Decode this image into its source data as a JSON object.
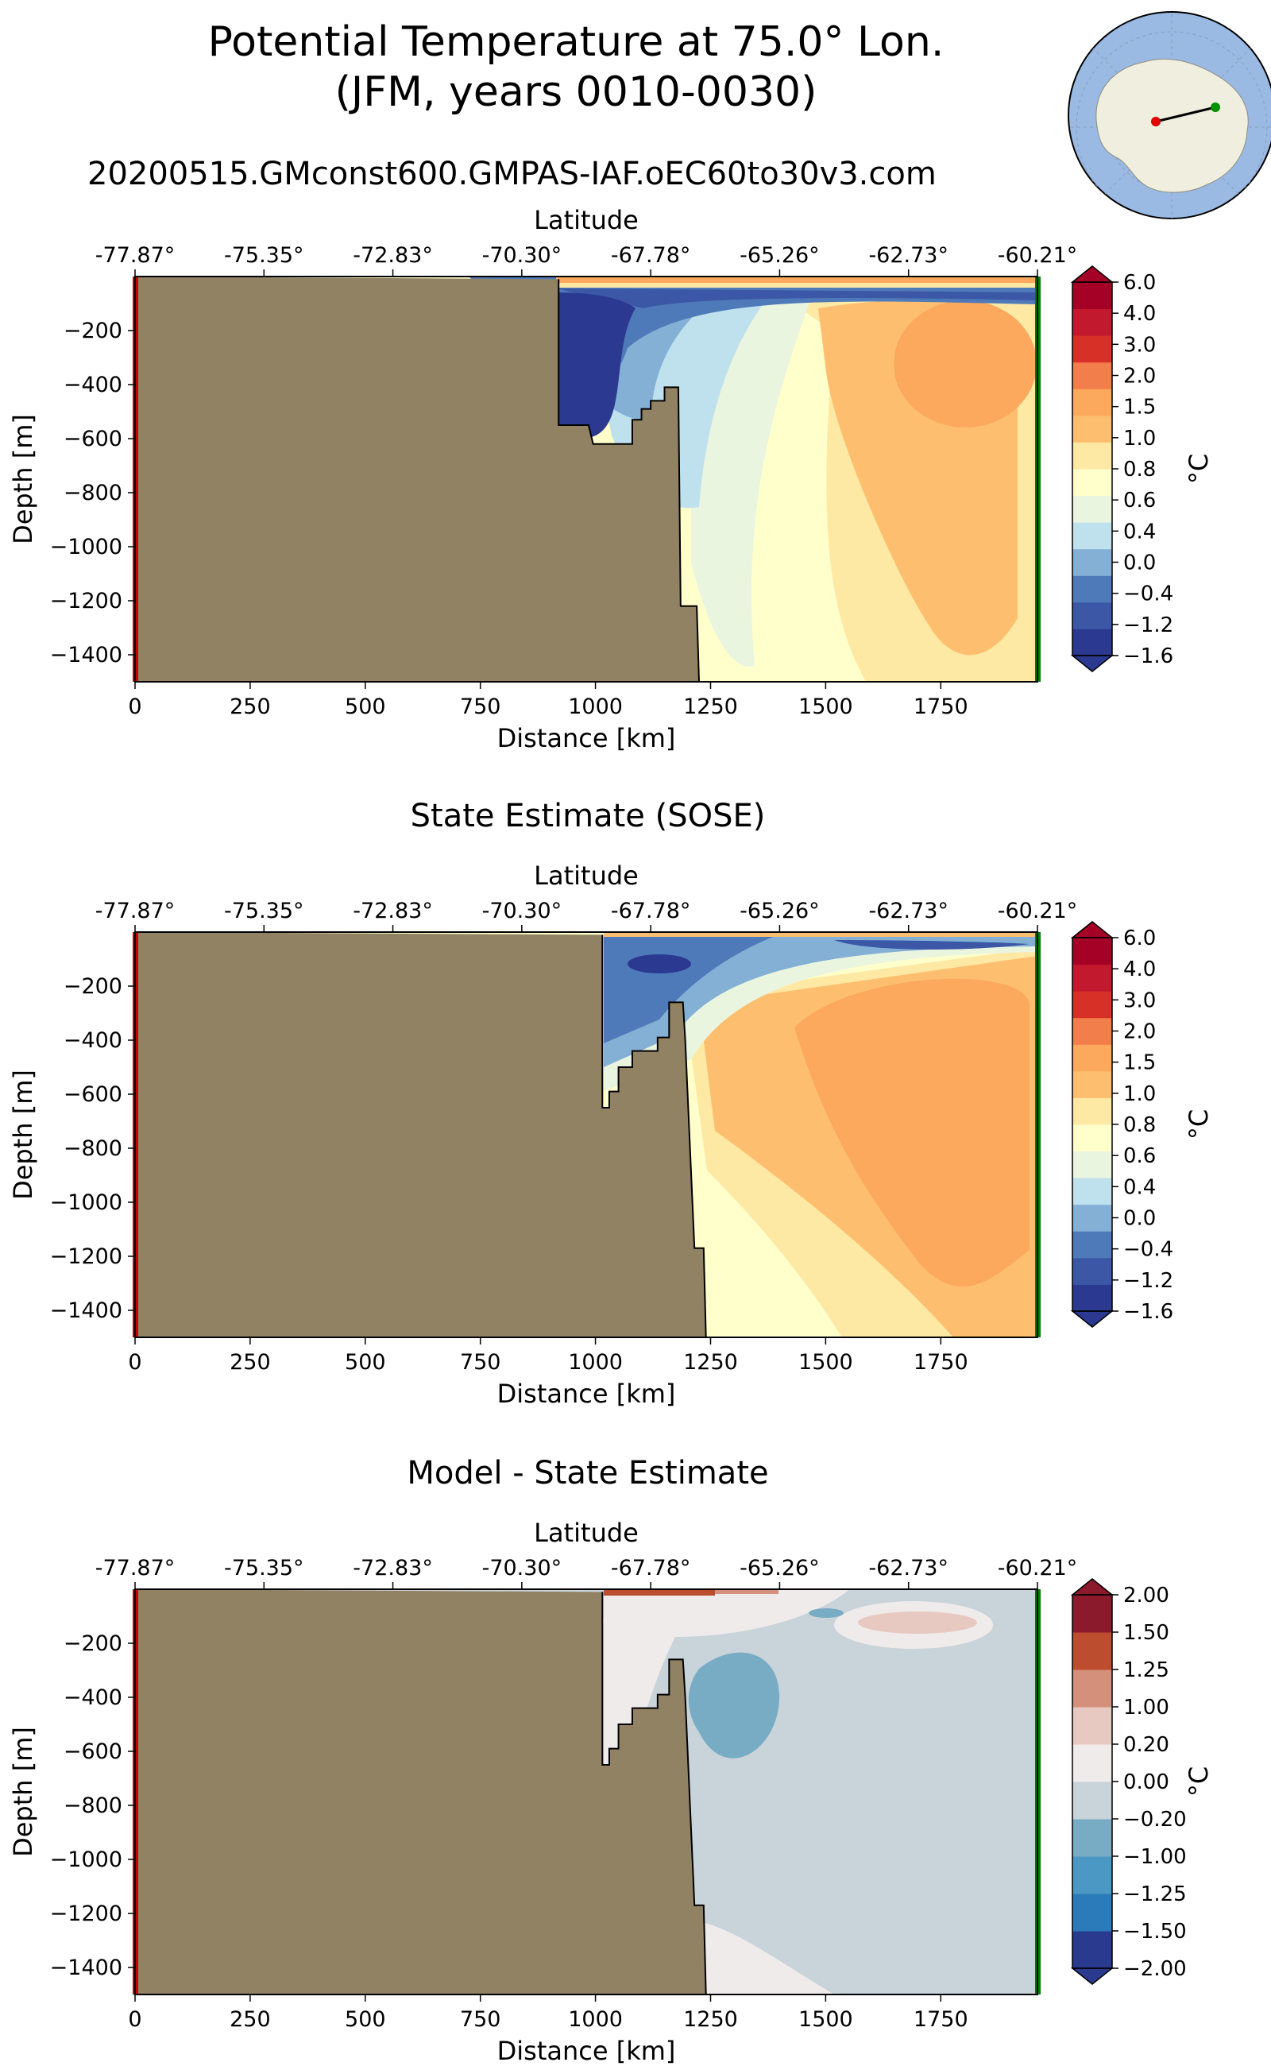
{
  "figure": {
    "title_line1": "Potential Temperature at 75.0° Lon.",
    "title_line2": "(JFM, years 0010-0030)",
    "run_name": "20200515.GMconst600.GMPAS-IAF.oEC60to30v3.com"
  },
  "colors": {
    "land": "#918264",
    "left_edge": "#cc0000",
    "right_edge": "#008000",
    "ocean": "#9ab9e3",
    "antarctica": "#efeedf"
  },
  "chart_data": [
    {
      "type": "heatmap",
      "title": "",
      "xlabel": "Distance [km]",
      "ylabel": "Depth [m]",
      "top_xlabel": "Latitude",
      "xlim": [
        0,
        1960
      ],
      "ylim": [
        -1500,
        0
      ],
      "x_ticks": [
        "0",
        "250",
        "500",
        "750",
        "1000",
        "1250",
        "1500",
        "1750"
      ],
      "y_ticks": [
        "−200",
        "−400",
        "−600",
        "−800",
        "−1000",
        "−1200",
        "−1400"
      ],
      "lat_ticks": [
        "-77.87°",
        "-75.35°",
        "-72.83°",
        "-70.30°",
        "-67.78°",
        "-65.26°",
        "-62.73°",
        "-60.21°"
      ],
      "colorbar_label": "°C",
      "colorbar_ticks": [
        "6.0",
        "4.0",
        "3.0",
        "2.0",
        "1.5",
        "1.0",
        "0.8",
        "0.6",
        "0.4",
        "0.0",
        "−0.4",
        "−1.2",
        "−1.6"
      ],
      "colorbar_colors": [
        "#2b3990",
        "#3b57a6",
        "#4f7ab9",
        "#84b0d6",
        "#bfe0ed",
        "#eaf5e0",
        "#ffffcc",
        "#fee9a4",
        "#fdbf6f",
        "#fca85d",
        "#f27e4b",
        "#d73027",
        "#c2192e",
        "#a50026"
      ],
      "bathymetry": [
        [
          920,
          -10
        ],
        [
          920,
          -550
        ],
        [
          985,
          -550
        ],
        [
          995,
          -620
        ],
        [
          1080,
          -620
        ],
        [
          1080,
          -530
        ],
        [
          1100,
          -530
        ],
        [
          1100,
          -490
        ],
        [
          1120,
          -490
        ],
        [
          1120,
          -460
        ],
        [
          1150,
          -460
        ],
        [
          1150,
          -410
        ],
        [
          1180,
          -410
        ],
        [
          1185,
          -1220
        ],
        [
          1220,
          -1220
        ],
        [
          1225,
          -1500
        ]
      ],
      "max_warm_depth_m": -1000
    },
    {
      "type": "heatmap",
      "title": "State Estimate (SOSE)",
      "xlabel": "Distance [km]",
      "ylabel": "Depth [m]",
      "top_xlabel": "Latitude",
      "xlim": [
        0,
        1960
      ],
      "ylim": [
        -1500,
        0
      ],
      "x_ticks": [
        "0",
        "250",
        "500",
        "750",
        "1000",
        "1250",
        "1500",
        "1750"
      ],
      "y_ticks": [
        "−200",
        "−400",
        "−600",
        "−800",
        "−1000",
        "−1200",
        "−1400"
      ],
      "lat_ticks": [
        "-77.87°",
        "-75.35°",
        "-72.83°",
        "-70.30°",
        "-67.78°",
        "-65.26°",
        "-62.73°",
        "-60.21°"
      ],
      "colorbar_label": "°C",
      "colorbar_ticks": [
        "6.0",
        "4.0",
        "3.0",
        "2.0",
        "1.5",
        "1.0",
        "0.8",
        "0.6",
        "0.4",
        "0.0",
        "−0.4",
        "−1.2",
        "−1.6"
      ],
      "colorbar_colors": [
        "#2b3990",
        "#3b57a6",
        "#4f7ab9",
        "#84b0d6",
        "#bfe0ed",
        "#eaf5e0",
        "#ffffcc",
        "#fee9a4",
        "#fdbf6f",
        "#fca85d",
        "#f27e4b",
        "#d73027",
        "#c2192e",
        "#a50026"
      ],
      "bathymetry": [
        [
          1015,
          -10
        ],
        [
          1015,
          -650
        ],
        [
          1030,
          -650
        ],
        [
          1030,
          -590
        ],
        [
          1050,
          -590
        ],
        [
          1050,
          -500
        ],
        [
          1080,
          -500
        ],
        [
          1080,
          -440
        ],
        [
          1135,
          -440
        ],
        [
          1135,
          -390
        ],
        [
          1160,
          -390
        ],
        [
          1160,
          -260
        ],
        [
          1190,
          -260
        ],
        [
          1195,
          -400
        ],
        [
          1215,
          -1170
        ],
        [
          1235,
          -1170
        ],
        [
          1240,
          -1500
        ]
      ]
    },
    {
      "type": "heatmap",
      "title": "Model - State Estimate",
      "xlabel": "Distance [km]",
      "ylabel": "Depth [m]",
      "top_xlabel": "Latitude",
      "xlim": [
        0,
        1960
      ],
      "ylim": [
        -1500,
        0
      ],
      "x_ticks": [
        "0",
        "250",
        "500",
        "750",
        "1000",
        "1250",
        "1500",
        "1750"
      ],
      "y_ticks": [
        "−200",
        "−400",
        "−600",
        "−800",
        "−1000",
        "−1200",
        "−1400"
      ],
      "lat_ticks": [
        "-77.87°",
        "-75.35°",
        "-72.83°",
        "-70.30°",
        "-67.78°",
        "-65.26°",
        "-62.73°",
        "-60.21°"
      ],
      "colorbar_label": "°C",
      "colorbar_ticks": [
        "2.00",
        "1.50",
        "1.25",
        "1.00",
        "0.20",
        "0.00",
        "−0.20",
        "−1.00",
        "−1.25",
        "−1.50",
        "−2.00"
      ],
      "colorbar_colors": [
        "#2a3a8f",
        "#2b7bba",
        "#4b98c4",
        "#78acc4",
        "#c9d3da",
        "#efebea",
        "#e8c9c2",
        "#d4907a",
        "#bd4d2f",
        "#8b1a2c"
      ],
      "bathymetry": [
        [
          1015,
          -10
        ],
        [
          1015,
          -650
        ],
        [
          1030,
          -650
        ],
        [
          1030,
          -590
        ],
        [
          1050,
          -590
        ],
        [
          1050,
          -500
        ],
        [
          1080,
          -500
        ],
        [
          1080,
          -440
        ],
        [
          1135,
          -440
        ],
        [
          1135,
          -390
        ],
        [
          1160,
          -390
        ],
        [
          1160,
          -260
        ],
        [
          1190,
          -260
        ],
        [
          1195,
          -400
        ],
        [
          1215,
          -1170
        ],
        [
          1235,
          -1170
        ],
        [
          1240,
          -1500
        ]
      ]
    }
  ]
}
